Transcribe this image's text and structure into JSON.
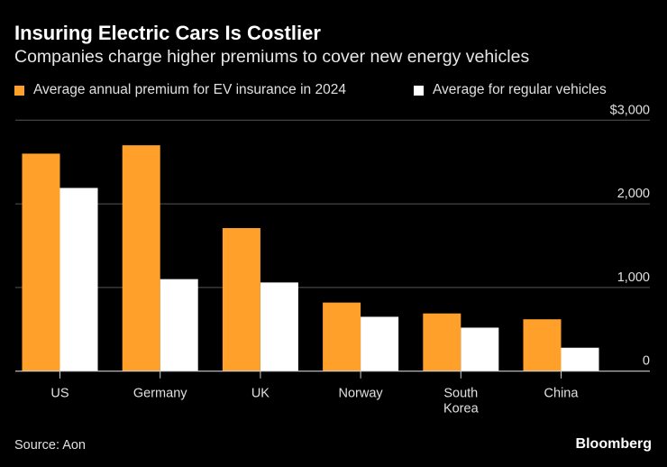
{
  "title": "Insuring Electric Cars Is Costlier",
  "subtitle": "Companies charge higher premiums to cover new energy vehicles",
  "source": "Source: Aon",
  "logo": "Bloomberg",
  "chart_data": {
    "type": "bar",
    "categories": [
      "US",
      "Germany",
      "UK",
      "Norway",
      "South Korea",
      "China"
    ],
    "category_lines": [
      [
        "US"
      ],
      [
        "Germany"
      ],
      [
        "UK"
      ],
      [
        "Norway"
      ],
      [
        "South",
        "Korea"
      ],
      [
        "China"
      ]
    ],
    "series": [
      {
        "name": "Average annual premium for EV insurance in 2024",
        "color": "#ffa02a",
        "values": [
          2600,
          2700,
          1710,
          820,
          690,
          620
        ]
      },
      {
        "name": "Average for regular vehicles",
        "color": "#ffffff",
        "values": [
          2190,
          1100,
          1060,
          650,
          520,
          280
        ]
      }
    ],
    "ylim": [
      0,
      3000
    ],
    "yticks": [
      0,
      1000,
      2000,
      3000
    ],
    "ytick_labels": [
      "0",
      "1,000",
      "2,000",
      "$3,000"
    ],
    "yaxis_position": "right",
    "grid": true,
    "legend": "top-left"
  }
}
